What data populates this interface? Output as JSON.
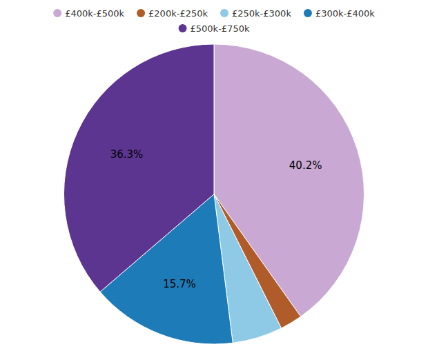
{
  "chart_data": {
    "type": "pie",
    "categories": [
      "£400k-£500k",
      "£200k-£250k",
      "£250k-£300k",
      "£300k-£400k",
      "£500k-£750k"
    ],
    "values": [
      40.2,
      2.4,
      5.4,
      15.7,
      36.3
    ],
    "colors": [
      "#c9a8d4",
      "#b05c2a",
      "#8ecae6",
      "#1d7cb8",
      "#5c3591"
    ],
    "value_labels": [
      "40.2%",
      null,
      null,
      "15.7%",
      "36.3%"
    ],
    "data_labels": true,
    "legend": "top"
  }
}
